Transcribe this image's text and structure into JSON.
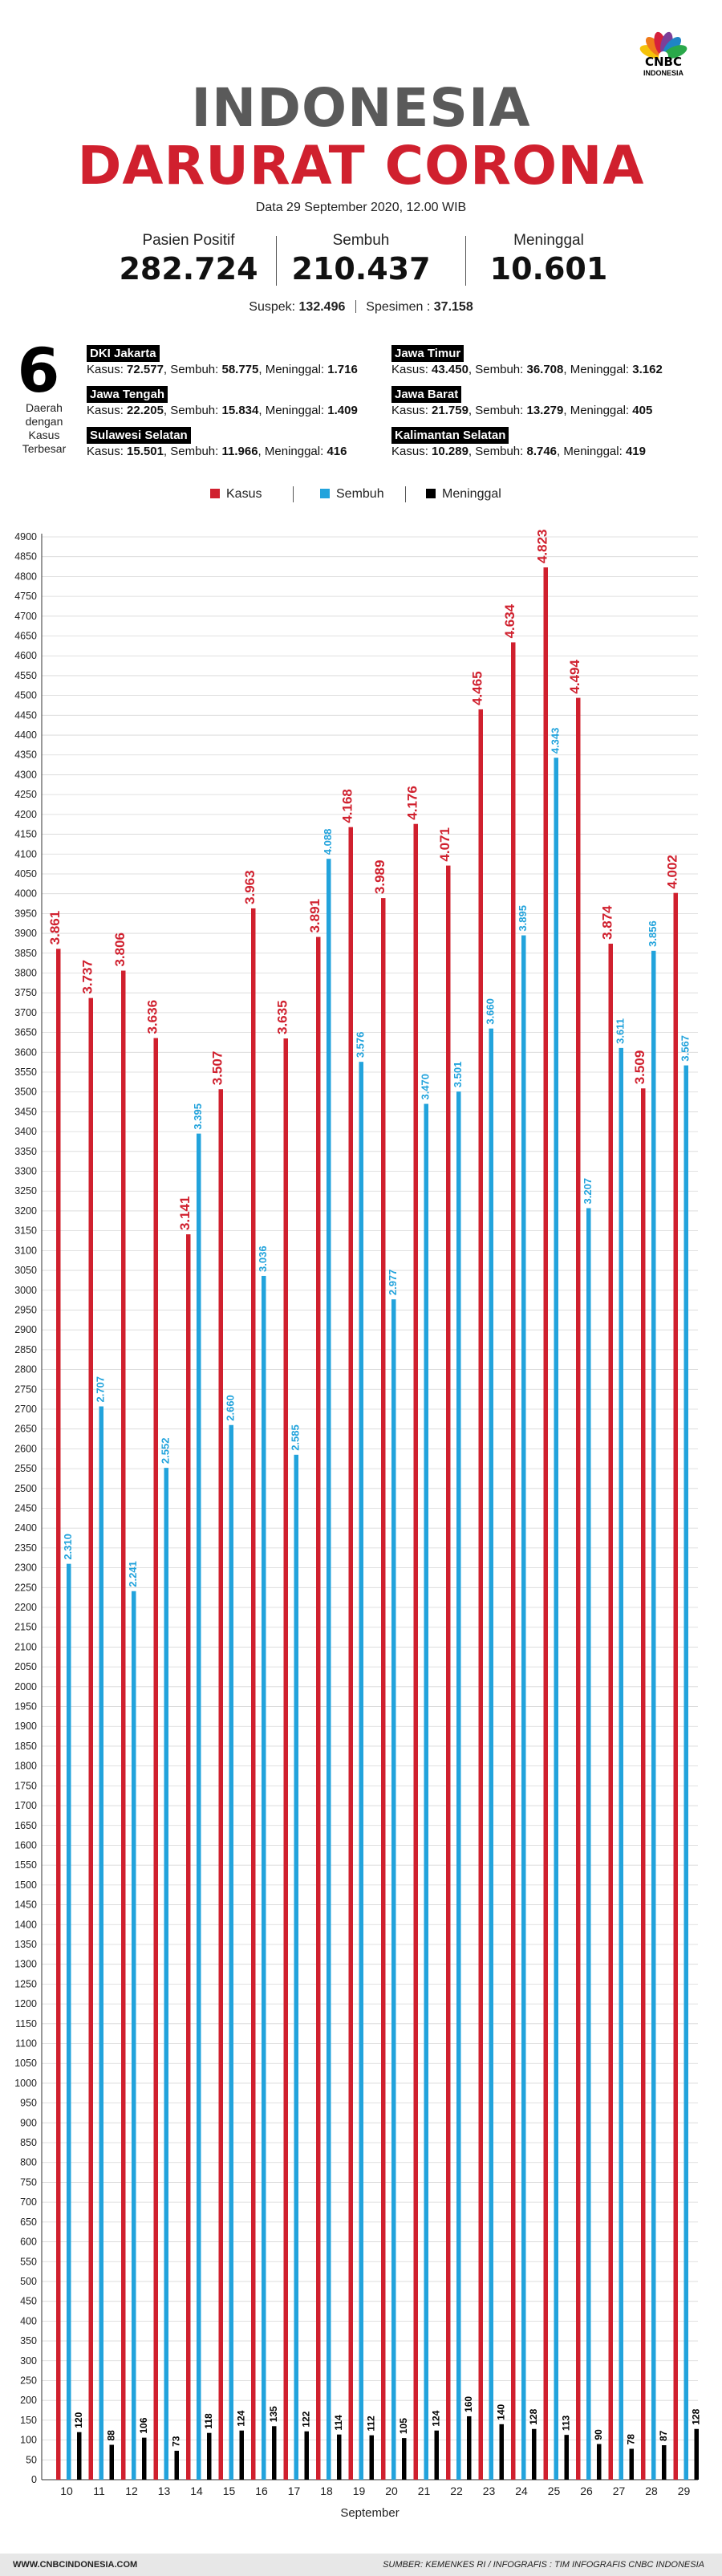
{
  "brand": {
    "logo_text": "CNBC",
    "logo_sub": "INDONESIA",
    "logo_colors": [
      "#f5c20a",
      "#ef7a1a",
      "#d6203c",
      "#7c3f98",
      "#1f84c6",
      "#2aa84a"
    ]
  },
  "header": {
    "title_line1": "INDONESIA",
    "title_line2": "DARURAT CORONA",
    "date": "Data 29 September 2020, 12.00 WIB"
  },
  "stats": [
    {
      "label": "Pasien Positif",
      "value": "282.724"
    },
    {
      "label": "Sembuh",
      "value": "210.437"
    },
    {
      "label": "Meninggal",
      "value": "10.601"
    }
  ],
  "suspek": {
    "label": "Suspek:",
    "value": "132.496"
  },
  "spesimen": {
    "label": "Spesimen :",
    "value": "37.158"
  },
  "regions": {
    "count": "6",
    "description": "Daerah dengan Kasus Terbesar",
    "items": [
      {
        "name": "DKI Jakarta",
        "kasus": "72.577",
        "sembuh": "58.775",
        "meninggal": "1.716"
      },
      {
        "name": "Jawa Timur",
        "kasus": "43.450",
        "sembuh": "36.708",
        "meninggal": "3.162"
      },
      {
        "name": "Jawa Tengah",
        "kasus": "22.205",
        "sembuh": "15.834",
        "meninggal": "1.409"
      },
      {
        "name": "Jawa Barat",
        "kasus": "21.759",
        "sembuh": "13.279",
        "meninggal": "405"
      },
      {
        "name": "Sulawesi Selatan",
        "kasus": "15.501",
        "sembuh": "11.966",
        "meninggal": "416"
      },
      {
        "name": "Kalimantan Selatan",
        "kasus": "10.289",
        "sembuh": "8.746",
        "meninggal": "419"
      }
    ],
    "kasus_label": "Kasus:",
    "sembuh_label": "Sembuh:",
    "meninggal_label": "Meninggal:"
  },
  "legend": [
    {
      "name": "Kasus",
      "color": "#d0202e"
    },
    {
      "name": "Sembuh",
      "color": "#22a3dc"
    },
    {
      "name": "Meninggal",
      "color": "#000000"
    }
  ],
  "chart_data": {
    "type": "bar",
    "categories": [
      "10",
      "11",
      "12",
      "13",
      "14",
      "15",
      "16",
      "17",
      "18",
      "19",
      "20",
      "21",
      "22",
      "23",
      "24",
      "25",
      "26",
      "27",
      "28",
      "29"
    ],
    "series": [
      {
        "name": "Kasus",
        "color": "#d0202e",
        "values": [
          3861,
          3737,
          3806,
          3636,
          3141,
          3507,
          3963,
          3635,
          3891,
          4168,
          3989,
          4176,
          4071,
          4465,
          4634,
          4823,
          4494,
          3874,
          3509,
          4002
        ],
        "labels": [
          "3.861",
          "3.737",
          "3.806",
          "3.636",
          "3.141",
          "3.507",
          "3.963",
          "3.635",
          "3.891",
          "4.168",
          "3.989",
          "4.176",
          "4.071",
          "4.465",
          "4.634",
          "4.823",
          "4.494",
          "3.874",
          "3.509",
          "4.002"
        ]
      },
      {
        "name": "Sembuh",
        "color": "#22a3dc",
        "values": [
          2310,
          2707,
          2241,
          2552,
          3395,
          2660,
          3036,
          2585,
          4088,
          3576,
          2977,
          3470,
          3501,
          3660,
          3895,
          4343,
          3207,
          3611,
          3856,
          3567
        ],
        "labels": [
          "2.310",
          "2.707",
          "2.241",
          "2.552",
          "3.395",
          "2.660",
          "3.036",
          "2.585",
          "4.088",
          "3.576",
          "2.977",
          "3.470",
          "3.501",
          "3.660",
          "3.895",
          "4.343",
          "3.207",
          "3.611",
          "3.856",
          "3.567"
        ]
      },
      {
        "name": "Meninggal",
        "color": "#000000",
        "values": [
          120,
          88,
          106,
          73,
          118,
          124,
          135,
          122,
          114,
          112,
          105,
          124,
          160,
          140,
          128,
          113,
          90,
          78,
          87,
          128
        ],
        "labels": [
          "120",
          "88",
          "106",
          "73",
          "118",
          "124",
          "135",
          "122",
          "114",
          "112",
          "105",
          "124",
          "160",
          "140",
          "128",
          "113",
          "90",
          "78",
          "87",
          "128"
        ]
      }
    ],
    "xlabel": "September",
    "ylabel": "",
    "ylim": [
      0,
      4900
    ],
    "ytick_step": 50,
    "grid": true
  },
  "footer": {
    "left": "WWW.CNBCINDONESIA.COM",
    "right": "SUMBER: KEMENKES RI / INFOGRAFIS : TIM INFOGRAFIS CNBC INDONESIA"
  }
}
